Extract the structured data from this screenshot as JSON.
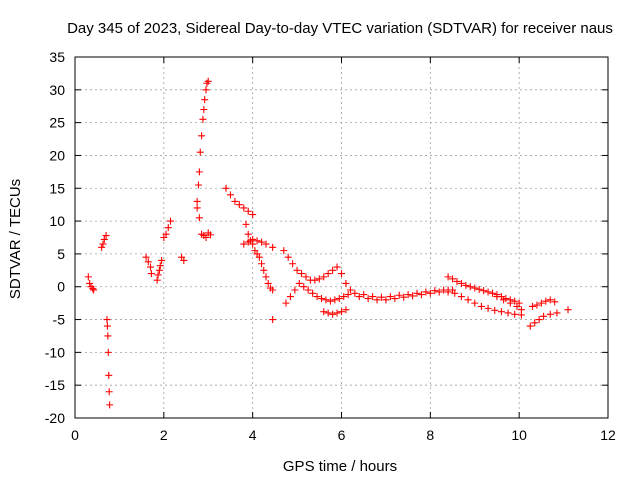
{
  "chart_data": {
    "type": "scatter",
    "title": "Day 345 of 2023, Sidereal Day-to-day VTEC variation (SDTVAR) for receiver naus",
    "xlabel": "GPS time / hours",
    "ylabel": "SDTVAR / TECUs",
    "xlim": [
      0,
      12
    ],
    "ylim": [
      -20,
      35
    ],
    "xticks": [
      0,
      2,
      4,
      6,
      8,
      10,
      12
    ],
    "yticks": [
      -20,
      -15,
      -10,
      -5,
      0,
      5,
      10,
      15,
      20,
      25,
      30,
      35
    ],
    "xtick_labels": [
      "0",
      "2",
      "4",
      "6",
      "8",
      "10",
      "12"
    ],
    "ytick_labels": [
      "-20",
      "-15",
      "-10",
      "-5",
      "0",
      "5",
      "10",
      "15",
      "20",
      "25",
      "30",
      "35"
    ],
    "grid": true,
    "marker": "+",
    "marker_color": "#ff0000",
    "series": [
      {
        "name": "SDTVAR",
        "x": [
          0.3,
          0.33,
          0.36,
          0.4,
          0.42,
          0.6,
          0.63,
          0.66,
          0.7,
          0.72,
          0.73,
          0.74,
          0.75,
          0.76,
          0.77,
          0.78,
          1.6,
          1.65,
          1.7,
          1.72,
          1.85,
          1.87,
          1.9,
          1.92,
          1.95,
          2.0,
          2.05,
          2.1,
          2.15,
          2.4,
          2.45,
          2.75,
          2.78,
          2.8,
          2.82,
          2.85,
          2.88,
          2.9,
          2.92,
          2.95,
          2.97,
          3.0,
          2.85,
          2.9,
          2.95,
          3.0,
          3.05,
          2.8,
          2.75,
          3.4,
          3.5,
          3.6,
          3.7,
          3.8,
          3.9,
          4.0,
          3.85,
          3.9,
          3.95,
          4.0,
          4.05,
          4.1,
          4.15,
          4.2,
          4.25,
          4.3,
          4.35,
          4.4,
          4.45,
          3.8,
          3.9,
          4.0,
          4.1,
          4.2,
          4.3,
          4.45,
          4.7,
          4.8,
          4.9,
          5.0,
          5.1,
          5.2,
          5.3,
          5.4,
          5.5,
          5.6,
          5.7,
          5.8,
          5.9,
          6.0,
          6.1,
          6.2,
          4.75,
          4.85,
          4.95,
          5.05,
          5.15,
          5.25,
          5.35,
          5.45,
          5.55,
          5.65,
          5.75,
          5.85,
          5.95,
          6.05,
          6.15,
          5.6,
          5.7,
          5.8,
          5.9,
          6.0,
          6.1,
          6.3,
          6.5,
          6.7,
          6.9,
          7.1,
          7.3,
          7.5,
          7.7,
          7.9,
          8.1,
          8.3,
          8.5,
          6.4,
          6.6,
          6.8,
          7.0,
          7.2,
          7.4,
          7.6,
          7.8,
          8.0,
          8.2,
          8.4,
          8.4,
          8.5,
          8.6,
          8.7,
          8.8,
          8.9,
          9.0,
          9.1,
          9.2,
          9.3,
          9.4,
          9.5,
          9.6,
          9.7,
          9.8,
          9.9,
          10.0,
          8.4,
          8.55,
          8.7,
          8.85,
          9.0,
          9.15,
          9.3,
          9.45,
          9.6,
          9.75,
          9.9,
          10.05,
          9.5,
          9.65,
          9.8,
          9.95,
          10.05,
          10.3,
          10.4,
          10.5,
          10.6,
          10.7,
          10.8,
          10.25,
          10.35,
          10.45,
          10.55,
          10.7,
          10.85,
          11.1,
          4.45
        ],
        "y": [
          1.5,
          0.5,
          0.0,
          -0.3,
          -0.5,
          6.0,
          6.5,
          7.2,
          7.8,
          -5.0,
          -6.0,
          -7.5,
          -10.0,
          -13.5,
          -16.0,
          -18.0,
          4.5,
          3.8,
          3.0,
          2.0,
          1.0,
          1.8,
          2.5,
          3.2,
          4.0,
          7.5,
          8.0,
          9.0,
          10.0,
          4.5,
          4.0,
          13.0,
          15.5,
          17.5,
          20.5,
          23.0,
          25.5,
          27.0,
          28.5,
          30.0,
          31.0,
          31.3,
          8.0,
          7.8,
          7.5,
          8.2,
          7.9,
          10.5,
          12.0,
          15.0,
          14.0,
          13.0,
          12.5,
          12.0,
          11.5,
          11.0,
          9.5,
          8.0,
          7.0,
          6.5,
          5.5,
          5.0,
          4.5,
          3.5,
          2.5,
          1.5,
          0.5,
          -0.2,
          -0.5,
          6.5,
          6.8,
          7.2,
          7.0,
          6.8,
          6.5,
          6.0,
          5.5,
          4.5,
          3.5,
          2.5,
          2.0,
          1.5,
          1.0,
          1.0,
          1.2,
          1.5,
          2.0,
          2.5,
          3.0,
          2.0,
          0.5,
          -0.5,
          -2.5,
          -1.5,
          -0.5,
          0.5,
          0.0,
          -0.5,
          -1.0,
          -1.5,
          -1.8,
          -2.0,
          -2.2,
          -2.0,
          -1.8,
          -1.5,
          -1.2,
          -3.8,
          -4.0,
          -4.2,
          -4.0,
          -3.8,
          -3.5,
          -1.0,
          -1.2,
          -1.5,
          -1.6,
          -1.5,
          -1.3,
          -1.2,
          -1.0,
          -0.8,
          -0.6,
          -0.5,
          -0.5,
          -1.5,
          -1.8,
          -2.0,
          -2.0,
          -1.8,
          -1.6,
          -1.4,
          -1.2,
          -1.0,
          -0.8,
          -0.8,
          1.5,
          1.2,
          0.8,
          0.5,
          0.2,
          0.0,
          -0.2,
          -0.4,
          -0.6,
          -0.8,
          -1.0,
          -1.2,
          -1.5,
          -1.8,
          -2.0,
          -2.2,
          -2.5,
          -0.5,
          -1.0,
          -1.5,
          -2.0,
          -2.5,
          -3.0,
          -3.3,
          -3.6,
          -3.8,
          -4.0,
          -4.2,
          -4.3,
          -1.5,
          -2.0,
          -2.5,
          -3.0,
          -3.5,
          -3.0,
          -2.8,
          -2.5,
          -2.2,
          -2.0,
          -2.3,
          -6.0,
          -5.5,
          -5.0,
          -4.5,
          -4.2,
          -4.0,
          -3.5,
          -5.0
        ]
      }
    ]
  }
}
